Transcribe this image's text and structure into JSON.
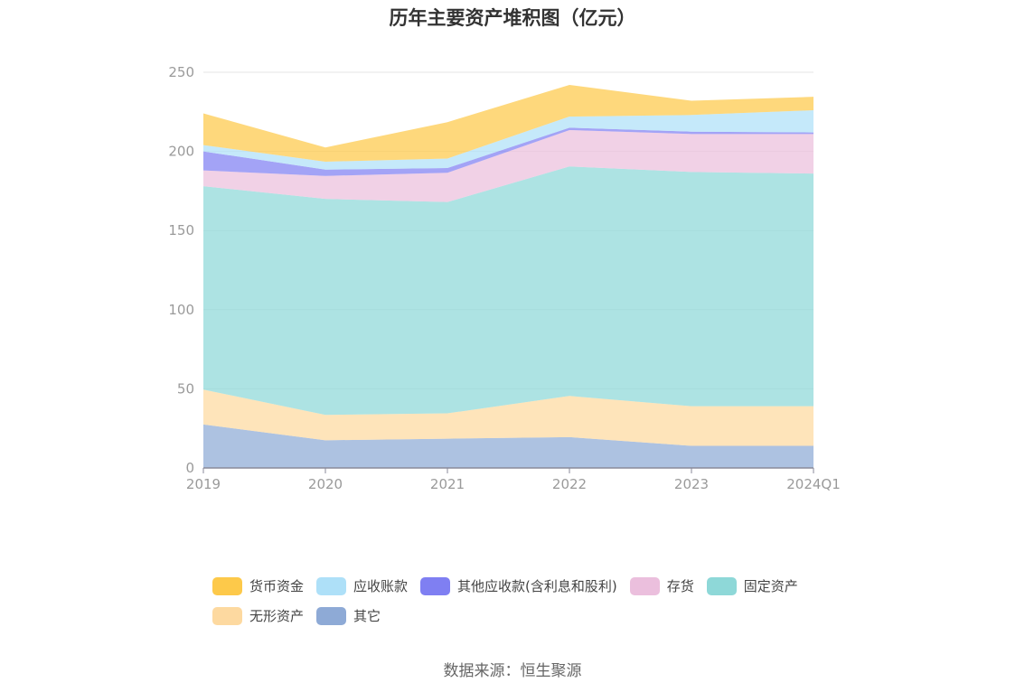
{
  "chart_data": {
    "type": "area",
    "stacked": true,
    "title": "历年主要资产堆积图（亿元）",
    "categories": [
      "2019",
      "2020",
      "2021",
      "2022",
      "2023",
      "2024Q1"
    ],
    "ylim": [
      0,
      250
    ],
    "yticks": [
      "0",
      "50",
      "100",
      "150",
      "200",
      "250"
    ],
    "grid": true,
    "legend_position": "bottom",
    "series": [
      {
        "name": "其它",
        "color": "#8eaad6",
        "values": [
          27.5,
          17.5,
          18.5,
          19.5,
          14,
          14
        ]
      },
      {
        "name": "无形资产",
        "color": "#fdd9a0",
        "values": [
          22,
          16,
          16,
          26,
          25,
          25
        ]
      },
      {
        "name": "固定资产",
        "color": "#8ed8d8",
        "values": [
          128.5,
          136.5,
          133.5,
          145,
          148,
          147
        ]
      },
      {
        "name": "存货",
        "color": "#ebbfdd",
        "values": [
          10,
          14.5,
          18.5,
          23,
          24,
          25
        ]
      },
      {
        "name": "其他应收款(含利息和股利)",
        "color": "#7f7ff2",
        "values": [
          12,
          4,
          3,
          1.5,
          1.5,
          1
        ]
      },
      {
        "name": "应收账款",
        "color": "#aee0f8",
        "values": [
          4,
          5,
          6,
          7,
          10.5,
          14
        ]
      },
      {
        "name": "货币资金",
        "color": "#fdc94a",
        "values": [
          20,
          9,
          23,
          20,
          9,
          8.5
        ]
      }
    ],
    "legend_order": [
      "货币资金",
      "应收账款",
      "其他应收款(含利息和股利)",
      "存货",
      "固定资产",
      "无形资产",
      "其它"
    ]
  },
  "source": "数据来源：恒生聚源"
}
